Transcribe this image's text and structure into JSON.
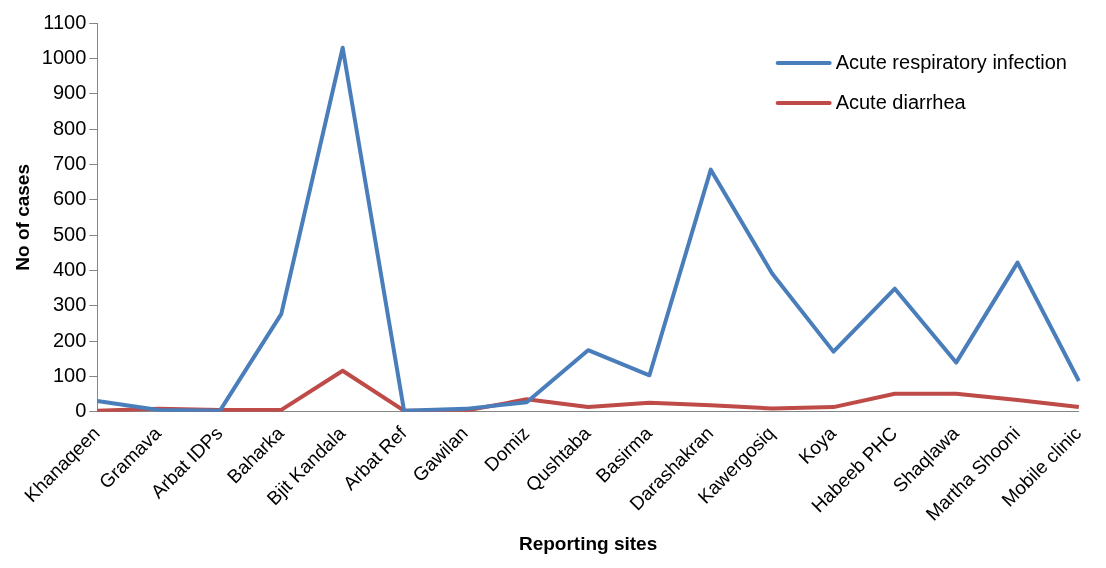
{
  "chart_data": {
    "type": "line",
    "xlabel": "Reporting sites",
    "ylabel": "No of cases",
    "categories": [
      "Khanaqeen",
      "Gramava",
      "Arbat IDPs",
      "Baharka",
      "Bjit Kandala",
      "Arbat Ref",
      "Gawilan",
      "Domiz",
      "Qushtaba",
      "Basirma",
      "Darashakran",
      "Kawergosiq",
      "Koya",
      "Habeeb PHC",
      "Shaqlawa",
      "Martha Shooni",
      "Mobile clinic"
    ],
    "series": [
      {
        "name": "Acute respiratory infection",
        "color": "#4a7ebb",
        "values": [
          30,
          5,
          3,
          277,
          1030,
          3,
          8,
          27,
          174,
          103,
          685,
          391,
          170,
          348,
          139,
          422,
          87
        ]
      },
      {
        "name": "Acute diarrhea",
        "color": "#be4b48",
        "values": [
          3,
          8,
          5,
          5,
          116,
          3,
          3,
          35,
          13,
          25,
          18,
          9,
          13,
          51,
          51,
          33,
          13
        ]
      }
    ],
    "ylim": [
      0,
      1100
    ],
    "yticks": [
      0,
      100,
      200,
      300,
      400,
      500,
      600,
      700,
      800,
      900,
      1000,
      1100
    ],
    "grid": false,
    "legend": "top right",
    "marker": "none",
    "line_style": "solid"
  }
}
